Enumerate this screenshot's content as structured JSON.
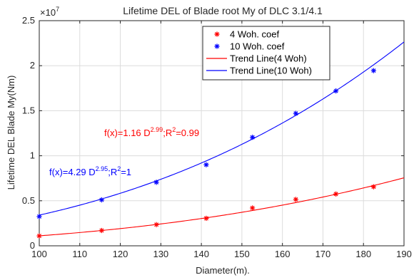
{
  "chart_data": {
    "type": "scatter",
    "title": "Lifetime DEL of Blade root My of DLC 3.1/4.1",
    "xlabel": "Diameter(m).",
    "ylabel": "Lifetime DEL Blade My(Nm)",
    "xlim": [
      100,
      190
    ],
    "ylim": [
      0,
      25000000
    ],
    "x_ticks": [
      "100",
      "110",
      "120",
      "130",
      "140",
      "150",
      "160",
      "170",
      "180",
      "190"
    ],
    "y_ticks": [
      "0",
      "0.5",
      "1",
      "1.5",
      "2",
      "2.5"
    ],
    "y_exponent": {
      "base": "×10",
      "power": "7"
    },
    "grid": true,
    "legend_position": "top-right",
    "series": [
      {
        "name": "4 Woh. coef",
        "kind": "scatter",
        "marker": "*",
        "color": "#ff0000",
        "x": [
          100,
          115.4,
          128.9,
          141.2,
          152.6,
          163.3,
          173.2,
          182.5
        ],
        "y": [
          1100000,
          1700000,
          2350000,
          3050000,
          4200000,
          5150000,
          5750000,
          6550000
        ]
      },
      {
        "name": "10 Woh. coef",
        "kind": "scatter",
        "marker": "*",
        "color": "#0000ff",
        "x": [
          100,
          115.4,
          128.9,
          141.2,
          152.6,
          163.3,
          173.2,
          182.5
        ],
        "y": [
          3250000,
          5100000,
          7050000,
          9000000,
          12050000,
          14700000,
          17200000,
          19450000
        ]
      },
      {
        "name": "Trend Line(4 Woh)",
        "kind": "line",
        "color": "#ff0000",
        "coef": 1.16,
        "exponent": 2.99
      },
      {
        "name": "Trend Line(10 Woh)",
        "kind": "line",
        "color": "#0000ff",
        "coef": 4.29,
        "exponent": 2.95
      }
    ],
    "annotations": [
      {
        "color": "#ff0000",
        "prefix": "f(x)=1.16 D",
        "power": "2.99",
        "suffix": ";R",
        "r_power": "2",
        "tail": "=0.99"
      },
      {
        "color": "#0000ff",
        "prefix": "f(x)=4.29 D",
        "power": "2.95",
        "suffix": ";R",
        "r_power": "2",
        "tail": "=1"
      }
    ]
  }
}
